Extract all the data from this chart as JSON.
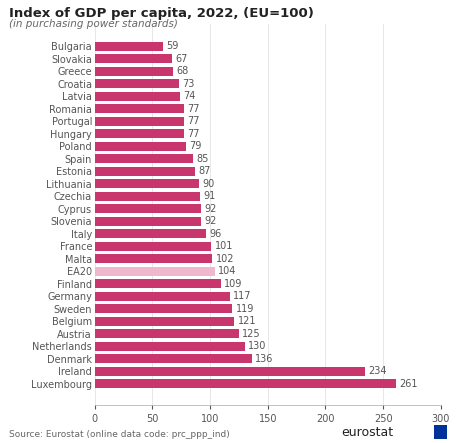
{
  "title": "Index of GDP per capita, 2022, (EU=100)",
  "subtitle": "(in purchasing power standards)",
  "source": "Source: Eurostat (online data code: prc_ppp_ind)",
  "categories": [
    "Bulgaria",
    "Slovakia",
    "Greece",
    "Croatia",
    "Latvia",
    "Romania",
    "Portugal",
    "Hungary",
    "Poland",
    "Spain",
    "Estonia",
    "Lithuania",
    "Czechia",
    "Cyprus",
    "Slovenia",
    "Italy",
    "France",
    "Malta",
    "EA20",
    "Finland",
    "Germany",
    "Sweden",
    "Belgium",
    "Austria",
    "Netherlands",
    "Denmark",
    "Ireland",
    "Luxembourg"
  ],
  "values": [
    59,
    67,
    68,
    73,
    74,
    77,
    77,
    77,
    79,
    85,
    87,
    90,
    91,
    92,
    92,
    96,
    101,
    102,
    104,
    109,
    117,
    119,
    121,
    125,
    130,
    136,
    234,
    261
  ],
  "bar_color": "#c9366e",
  "ea20_color": "#f0b8ce",
  "xlim": [
    0,
    300
  ],
  "xticks": [
    0,
    50,
    100,
    150,
    200,
    250,
    300
  ],
  "background_color": "#ffffff",
  "title_fontsize": 9.5,
  "subtitle_fontsize": 7.5,
  "label_fontsize": 7,
  "value_fontsize": 7,
  "source_fontsize": 6.5
}
